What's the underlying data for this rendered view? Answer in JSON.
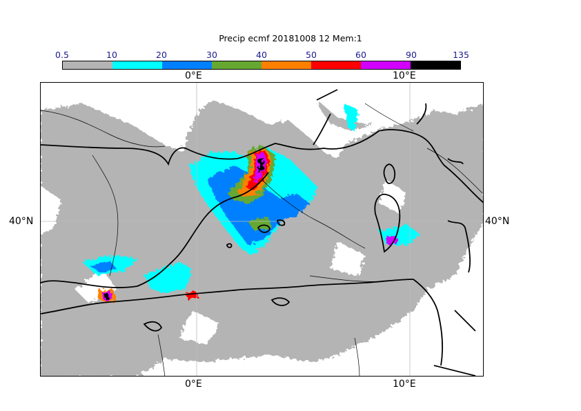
{
  "title": "Precip ecmf 20181008 12 Mem:1",
  "colorbar": {
    "ticks": [
      "0.5",
      "10",
      "20",
      "30",
      "40",
      "50",
      "60",
      "90",
      "135"
    ],
    "colors": [
      "#b4b4b4",
      "#00ffff",
      "#0080ff",
      "#66a832",
      "#ff8000",
      "#ff0000",
      "#d200ff",
      "#000000"
    ]
  },
  "axes": {
    "lon_top": [
      "0°E",
      "10°E"
    ],
    "lon_bottom": [
      "0°E",
      "10°E"
    ],
    "lat_left": "40°N",
    "lat_right": "40°N"
  }
}
